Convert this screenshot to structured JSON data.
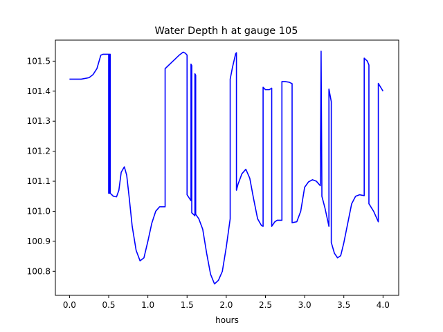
{
  "chart_data": {
    "type": "line",
    "title": "Water Depth h at gauge 105",
    "xlabel": "hours",
    "ylabel": "",
    "xlim": [
      -0.18,
      4.2
    ],
    "ylim": [
      100.72,
      101.57
    ],
    "grid": false,
    "x_ticks": [
      0.0,
      0.5,
      1.0,
      1.5,
      2.0,
      2.5,
      3.0,
      3.5,
      4.0
    ],
    "x_tick_labels": [
      "0.0",
      "0.5",
      "1.0",
      "1.5",
      "2.0",
      "2.5",
      "3.0",
      "3.5",
      "4.0"
    ],
    "y_ticks": [
      100.8,
      100.9,
      101.0,
      101.1,
      101.2,
      101.3,
      101.4,
      101.5
    ],
    "y_tick_labels": [
      "100.8",
      "100.9",
      "101.0",
      "101.1",
      "101.2",
      "101.3",
      "101.4",
      "101.5"
    ],
    "series": [
      {
        "color": "#0000ff",
        "x": [
          0.0,
          0.15,
          0.25,
          0.3,
          0.35,
          0.4,
          0.43,
          0.46,
          0.49,
          0.5,
          0.5,
          0.51,
          0.51,
          0.52,
          0.52,
          0.56,
          0.6,
          0.63,
          0.66,
          0.7,
          0.73,
          0.76,
          0.8,
          0.85,
          0.9,
          0.95,
          1.0,
          1.05,
          1.1,
          1.15,
          1.2,
          1.22,
          1.22,
          1.3,
          1.4,
          1.45,
          1.48,
          1.5,
          1.5,
          1.55,
          1.55,
          1.56,
          1.56,
          1.6,
          1.6,
          1.61,
          1.61,
          1.65,
          1.7,
          1.75,
          1.8,
          1.85,
          1.9,
          1.95,
          2.0,
          2.05,
          2.05,
          2.08,
          2.12,
          2.13,
          2.13,
          2.15,
          2.2,
          2.25,
          2.3,
          2.35,
          2.4,
          2.45,
          2.47,
          2.47,
          2.5,
          2.55,
          2.58,
          2.58,
          2.62,
          2.65,
          2.7,
          2.71,
          2.71,
          2.75,
          2.8,
          2.84,
          2.84,
          2.9,
          2.95,
          3.0,
          3.05,
          3.1,
          3.15,
          3.2,
          3.21,
          3.21,
          3.22,
          3.22,
          3.26,
          3.31,
          3.31,
          3.34,
          3.34,
          3.38,
          3.42,
          3.46,
          3.5,
          3.55,
          3.6,
          3.65,
          3.7,
          3.76,
          3.76,
          3.8,
          3.82,
          3.82,
          3.88,
          3.94,
          3.94,
          4.0
        ],
        "y": [
          101.44,
          101.44,
          101.445,
          101.455,
          101.475,
          101.52,
          101.523,
          101.523,
          101.523,
          101.523,
          101.06,
          101.06,
          101.523,
          101.523,
          101.06,
          101.05,
          101.048,
          101.07,
          101.13,
          101.148,
          101.12,
          101.05,
          100.95,
          100.87,
          100.835,
          100.845,
          100.9,
          100.96,
          101.0,
          101.015,
          101.015,
          101.015,
          101.475,
          101.495,
          101.52,
          101.53,
          101.526,
          101.52,
          101.055,
          101.035,
          101.49,
          101.485,
          100.995,
          100.985,
          101.458,
          101.453,
          100.99,
          100.975,
          100.94,
          100.86,
          100.79,
          100.758,
          100.77,
          100.8,
          100.88,
          100.975,
          101.44,
          101.48,
          101.525,
          101.528,
          101.07,
          101.09,
          101.125,
          101.14,
          101.11,
          101.04,
          100.975,
          100.952,
          100.95,
          101.413,
          101.405,
          101.405,
          101.41,
          100.95,
          100.965,
          100.97,
          100.97,
          100.97,
          101.432,
          101.432,
          101.43,
          101.425,
          100.962,
          100.965,
          101.0,
          101.08,
          101.098,
          101.105,
          101.1,
          101.085,
          101.533,
          101.53,
          101.07,
          101.05,
          101.01,
          100.95,
          101.407,
          101.365,
          100.896,
          100.86,
          100.845,
          100.852,
          100.895,
          100.96,
          101.025,
          101.05,
          101.055,
          101.052,
          101.51,
          101.5,
          101.487,
          101.025,
          101.0,
          100.965,
          101.426,
          101.4
        ]
      }
    ]
  }
}
